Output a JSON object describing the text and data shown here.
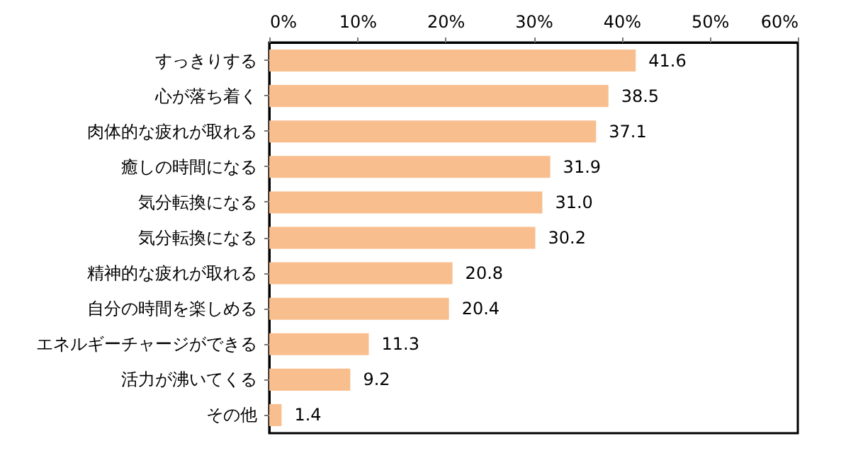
{
  "chart_data": {
    "type": "bar",
    "orientation": "horizontal",
    "categories": [
      "すっきりする",
      "心が落ち着く",
      "肉体的な疲れが取れる",
      "癒しの時間になる",
      "気分転換になる",
      "気分転換になる",
      "精神的な疲れが取れる",
      "自分の時間を楽しめる",
      "エネルギーチャージができる",
      "活力が沸いてくる",
      "その他"
    ],
    "values": [
      41.6,
      38.5,
      37.1,
      31.9,
      31.0,
      30.2,
      20.8,
      20.4,
      11.3,
      9.2,
      1.4
    ],
    "value_labels": [
      "41.6",
      "38.5",
      "37.1",
      "31.9",
      "31.0",
      "30.2",
      "20.8",
      "20.4",
      "11.3",
      "9.2",
      "1.4"
    ],
    "color": "#f9be8e",
    "xlim": [
      0,
      60
    ],
    "xticks": [
      {
        "value": 0,
        "label": "0%"
      },
      {
        "value": 10,
        "label": "10%"
      },
      {
        "value": 20,
        "label": "20%"
      },
      {
        "value": 30,
        "label": "30%"
      },
      {
        "value": 40,
        "label": "40%"
      },
      {
        "value": 50,
        "label": "50%"
      },
      {
        "value": 60,
        "label": "60%"
      }
    ]
  }
}
